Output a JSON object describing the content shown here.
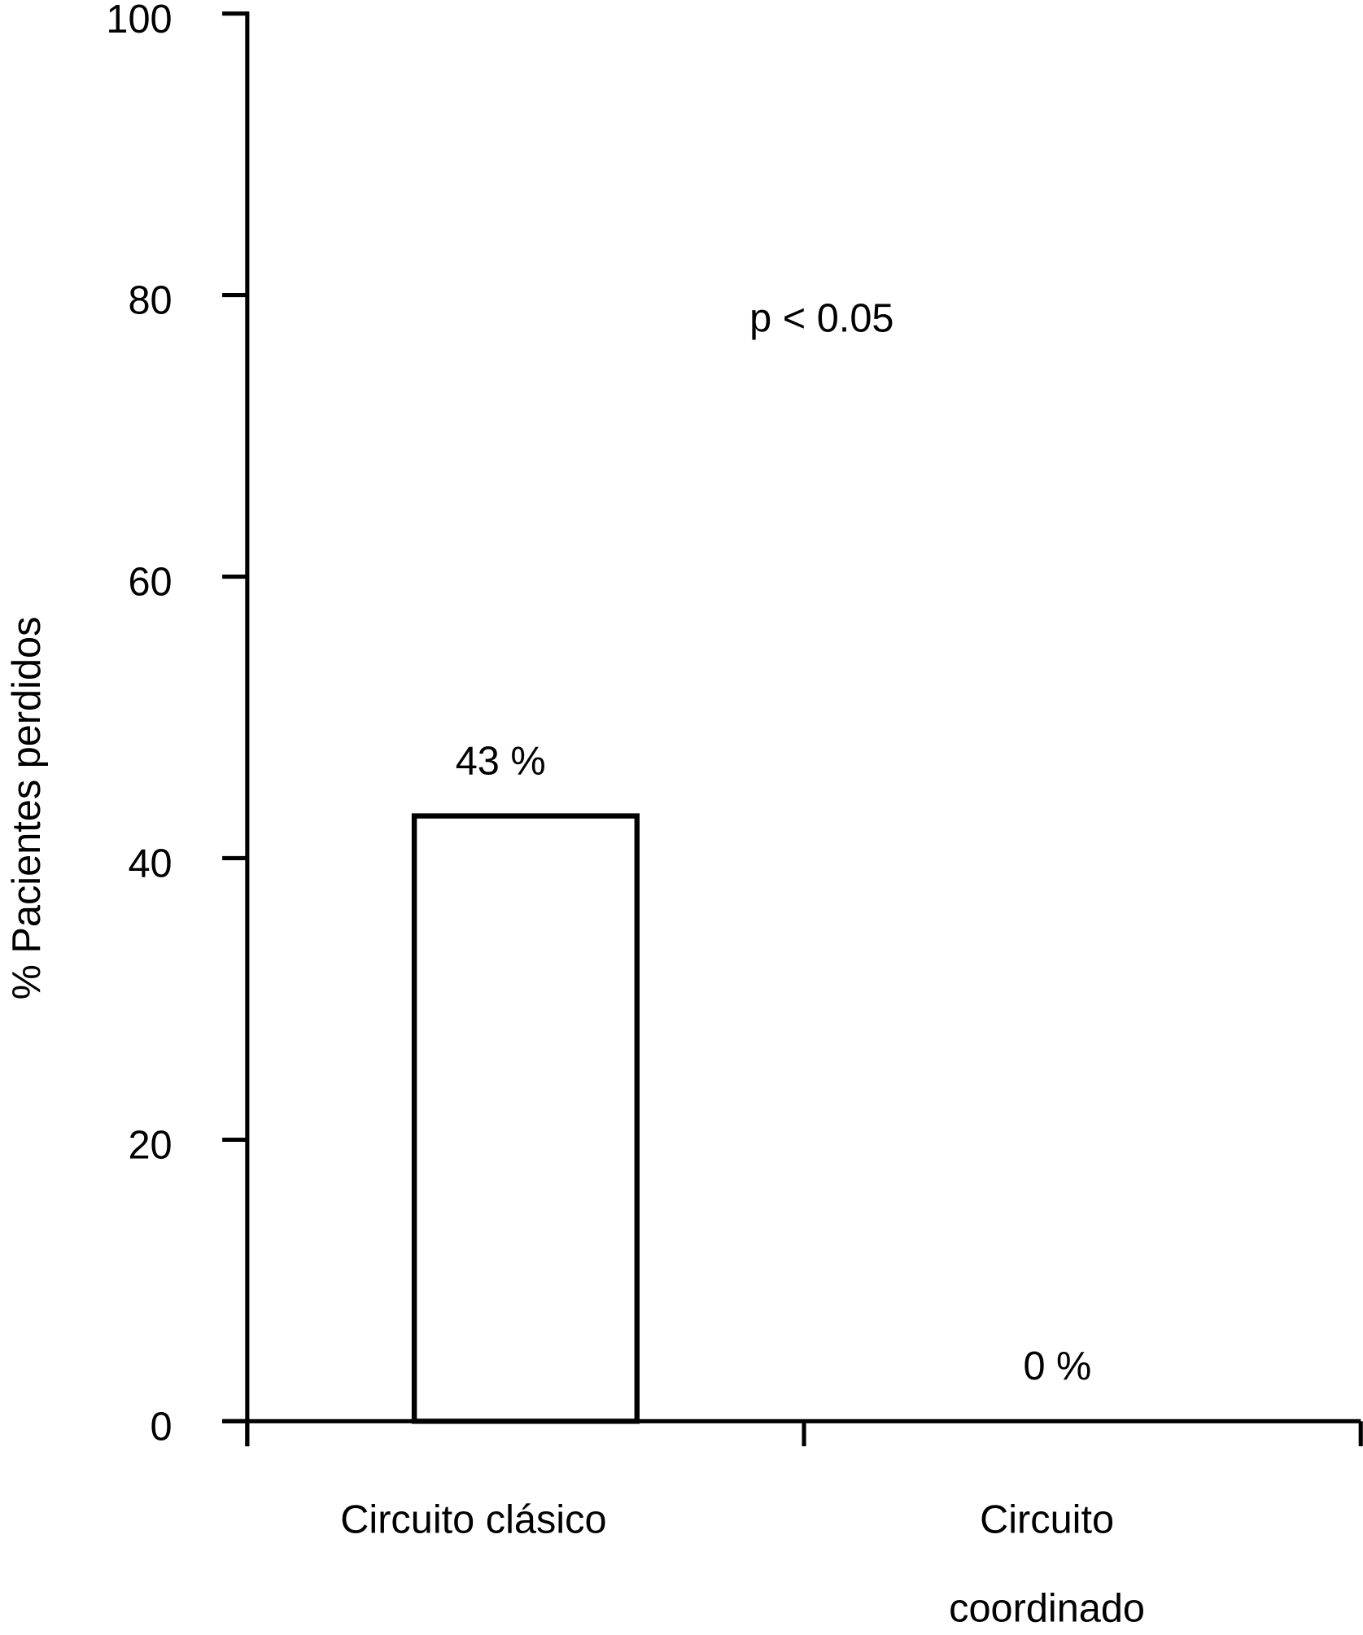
{
  "chart_data": {
    "type": "bar",
    "y_label": "% Pacientes perdidos",
    "annotation": "p < 0.05",
    "categories": [
      "Circuito clásico",
      "Circuito coordinado"
    ],
    "values": [
      43,
      0
    ],
    "value_labels": [
      "43 %",
      "0 %"
    ],
    "color": "#ffffff",
    "edge_color": "#000000",
    "ylim": [
      0,
      100
    ],
    "yticks": [
      0,
      20,
      40,
      60,
      80,
      100
    ],
    "grid": false
  }
}
